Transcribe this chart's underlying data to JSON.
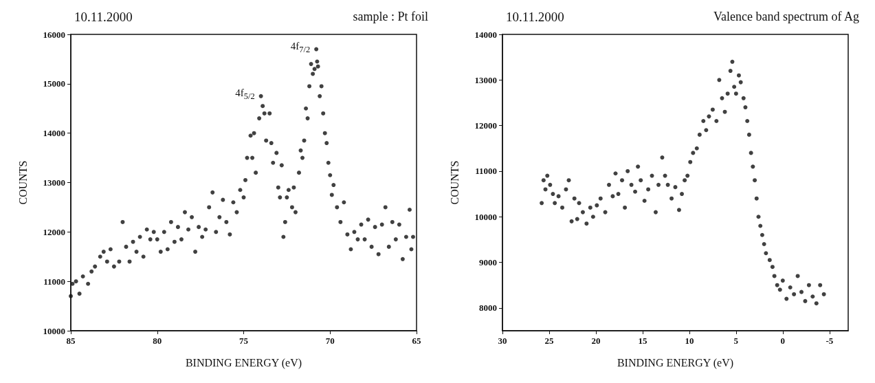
{
  "chart_data": [
    {
      "type": "scatter",
      "title": "10.11.2000",
      "subtitle": "sample : Pt foil",
      "xlabel": "BINDING ENERGY (eV)",
      "ylabel": "COUNTS",
      "marker": "circle",
      "grid": false,
      "xlim": [
        85,
        65
      ],
      "xticks": [
        85,
        80,
        75,
        70,
        65
      ],
      "ylim": [
        10000,
        16000
      ],
      "yticks": [
        10000,
        11000,
        12000,
        13000,
        14000,
        15000,
        16000
      ],
      "annotations": [
        {
          "text": "4f$_{5/2}$",
          "x": 74.0,
          "y": 14750
        },
        {
          "text": "4f$_{7/2}$",
          "x": 70.8,
          "y": 15700
        }
      ],
      "series": [
        {
          "color": "#111111",
          "x": [
            85,
            84.9,
            84.7,
            84.5,
            84.3,
            84.0,
            83.8,
            83.6,
            83.3,
            83.1,
            82.9,
            82.7,
            82.5,
            82.2,
            82.0,
            81.8,
            81.6,
            81.4,
            81.2,
            81.0,
            80.8,
            80.6,
            80.4,
            80.2,
            80.0,
            79.8,
            79.6,
            79.4,
            79.2,
            79.0,
            78.8,
            78.6,
            78.4,
            78.2,
            78.0,
            77.8,
            77.6,
            77.4,
            77.2,
            77.0,
            76.8,
            76.6,
            76.4,
            76.2,
            76.0,
            75.8,
            75.6,
            75.4,
            75.2,
            75.0,
            74.9,
            74.8,
            74.6,
            74.5,
            74.4,
            74.3,
            74.1,
            74.0,
            73.9,
            73.8,
            73.7,
            73.5,
            73.4,
            73.3,
            73.1,
            73.0,
            72.9,
            72.8,
            72.7,
            72.6,
            72.5,
            72.4,
            72.2,
            72.1,
            72.0,
            71.8,
            71.7,
            71.6,
            71.5,
            71.4,
            71.3,
            71.2,
            71.1,
            71.0,
            70.9,
            70.8,
            70.75,
            70.7,
            70.6,
            70.5,
            70.4,
            70.3,
            70.2,
            70.1,
            70.0,
            69.9,
            69.8,
            69.6,
            69.4,
            69.2,
            69.0,
            68.8,
            68.6,
            68.4,
            68.2,
            68.0,
            67.8,
            67.6,
            67.4,
            67.2,
            67.0,
            66.8,
            66.6,
            66.4,
            66.2,
            66.0,
            65.8,
            65.6,
            65.4,
            65.3,
            65.2
          ],
          "values": [
            10700,
            10950,
            11000,
            10750,
            11100,
            10950,
            11200,
            11300,
            11500,
            11600,
            11400,
            11650,
            11300,
            11400,
            12200,
            11700,
            11400,
            11800,
            11600,
            11900,
            11500,
            12050,
            11850,
            12000,
            11850,
            11600,
            12000,
            11650,
            12200,
            11800,
            12100,
            11850,
            12400,
            12050,
            12300,
            11600,
            12100,
            11900,
            12050,
            12500,
            12800,
            12000,
            12300,
            12650,
            12200,
            11950,
            12600,
            12400,
            12850,
            12700,
            13050,
            13500,
            13950,
            13500,
            14000,
            13200,
            14300,
            14750,
            14550,
            14400,
            13850,
            14400,
            13800,
            13400,
            13600,
            12900,
            12700,
            13350,
            11900,
            12200,
            12700,
            12850,
            12500,
            12900,
            12400,
            13200,
            13650,
            13500,
            13850,
            14500,
            14300,
            14950,
            15400,
            15200,
            15300,
            15700,
            15450,
            15350,
            14750,
            14950,
            14400,
            14000,
            13800,
            13400,
            13150,
            12750,
            12950,
            12500,
            12200,
            12600,
            11950,
            11650,
            12000,
            11850,
            12150,
            11850,
            12250,
            11700,
            12100,
            11550,
            12150,
            12500,
            11700,
            12200,
            11850,
            12150,
            11450,
            11900,
            12450,
            11650,
            11900
          ]
        }
      ]
    },
    {
      "type": "scatter",
      "title": "10.11.2000",
      "subtitle": "Valence band spectrum of Ag",
      "xlabel": "BINDING ENERGY (eV)",
      "ylabel": "COUNTS",
      "marker": "circle",
      "grid": false,
      "xlim": [
        30,
        -7
      ],
      "xticks": [
        30,
        25,
        20,
        15,
        10,
        5,
        0,
        -5
      ],
      "ylim": [
        7500,
        14000
      ],
      "yticks": [
        8000,
        9000,
        10000,
        11000,
        12000,
        13000,
        14000
      ],
      "series": [
        {
          "color": "#111111",
          "x": [
            25.8,
            25.6,
            25.4,
            25.2,
            24.9,
            24.6,
            24.4,
            24.0,
            23.6,
            23.2,
            22.9,
            22.6,
            22.3,
            22.0,
            21.8,
            21.4,
            21.0,
            20.6,
            20.3,
            19.9,
            19.5,
            19.0,
            18.6,
            18.2,
            17.9,
            17.6,
            17.2,
            16.9,
            16.6,
            16.2,
            15.8,
            15.5,
            15.2,
            14.8,
            14.4,
            14.0,
            13.6,
            13.3,
            12.9,
            12.6,
            12.3,
            11.9,
            11.5,
            11.1,
            10.8,
            10.5,
            10.2,
            9.9,
            9.6,
            9.2,
            8.9,
            8.5,
            8.2,
            7.9,
            7.5,
            7.1,
            6.8,
            6.5,
            6.2,
            5.9,
            5.6,
            5.4,
            5.2,
            5.0,
            4.7,
            4.5,
            4.2,
            4.0,
            3.8,
            3.6,
            3.4,
            3.2,
            3.0,
            2.8,
            2.6,
            2.4,
            2.2,
            2.0,
            1.8,
            1.4,
            1.1,
            0.9,
            0.6,
            0.3,
            0.0,
            -0.4,
            -0.8,
            -1.2,
            -1.6,
            -2.0,
            -2.4,
            -2.8,
            -3.2,
            -3.6,
            -4.0,
            -4.4
          ],
          "values": [
            10300,
            10800,
            10600,
            10900,
            10700,
            10500,
            10300,
            10450,
            10200,
            10600,
            10800,
            9900,
            10400,
            9950,
            10300,
            10100,
            9850,
            10200,
            10000,
            10250,
            10400,
            10100,
            10700,
            10450,
            10950,
            10500,
            10800,
            10200,
            11000,
            10700,
            10550,
            11100,
            10800,
            10350,
            10600,
            10900,
            10100,
            10700,
            11300,
            10900,
            10700,
            10400,
            10650,
            10150,
            10500,
            10800,
            10900,
            11200,
            11400,
            11500,
            11800,
            12100,
            11900,
            12200,
            12350,
            12100,
            13000,
            12600,
            12300,
            12700,
            13200,
            13400,
            12850,
            12700,
            13100,
            12950,
            12600,
            12400,
            12100,
            11800,
            11400,
            11100,
            10800,
            10400,
            10000,
            9800,
            9600,
            9400,
            9200,
            9050,
            8900,
            8700,
            8500,
            8400,
            8600,
            8200,
            8450,
            8300,
            8700,
            8350,
            8150,
            8500,
            8250,
            8100,
            8500,
            8300
          ]
        }
      ]
    }
  ]
}
